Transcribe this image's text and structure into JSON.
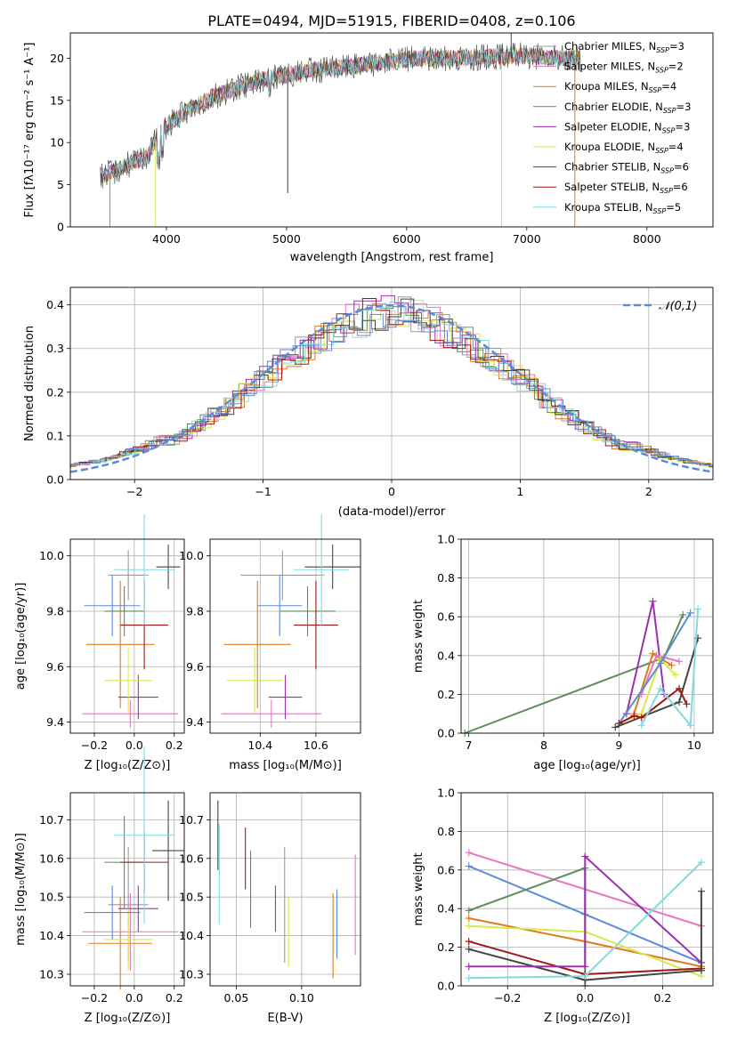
{
  "figure": {
    "title": "PLATE=0494, MJD=51915, FIBERID=0408, z=0.106"
  },
  "colors": {
    "Chabrier MILES": "#9a9a9a",
    "Salpeter MILES": "#e377c2",
    "Kroupa MILES": "#e07b1c",
    "Chabrier ELODIE": "#5c8c5c",
    "Salpeter ELODIE": "#9c2fb0",
    "Kroupa ELODIE": "#d8e84a",
    "Chabrier STELIB": "#444444",
    "Salpeter STELIB": "#a01616",
    "Kroupa STELIB": "#7fdbe0",
    "blue": "#5b8ad9",
    "gauss": "#5b8ad9"
  },
  "chart_data": [
    {
      "id": "spectrum",
      "type": "line",
      "title": "PLATE=0494, MJD=51915, FIBERID=0408, z=0.106",
      "xlabel": "wavelength [Angstrom, rest frame]",
      "ylabel": "Flux [fλ10⁻¹⁷ erg cm⁻² s⁻¹ A⁻¹]",
      "xlim": [
        3200,
        8550
      ],
      "ylim": [
        0,
        23
      ],
      "xticks": [
        "4000",
        "5000",
        "6000",
        "7000",
        "8000"
      ],
      "yticks": [
        "0",
        "5",
        "10",
        "15",
        "20"
      ],
      "grid": false,
      "legend_position": "right",
      "x_range_data": [
        3450,
        7450
      ],
      "continuum": [
        [
          3450,
          6.0
        ],
        [
          3550,
          6.5
        ],
        [
          3700,
          7.5
        ],
        [
          3850,
          8.5
        ],
        [
          3950,
          11.5
        ],
        [
          4050,
          12.5
        ],
        [
          4200,
          14.0
        ],
        [
          4400,
          15.5
        ],
        [
          4600,
          16.5
        ],
        [
          4800,
          17.5
        ],
        [
          5000,
          18.0
        ],
        [
          5200,
          18.5
        ],
        [
          5500,
          19.0
        ],
        [
          5800,
          19.5
        ],
        [
          6100,
          20.0
        ],
        [
          6400,
          20.0
        ],
        [
          6700,
          20.2
        ],
        [
          7000,
          20.3
        ],
        [
          7200,
          20.0
        ],
        [
          7450,
          20.0
        ]
      ],
      "series": [
        {
          "name": "Chabrier MILES, N_SSP=3",
          "label_main": "Chabrier MILES, N",
          "label_sub": "SSP",
          "label_tail": "=3"
        },
        {
          "name": "Salpeter MILES, N_SSP=2",
          "label_main": "Salpeter MILES, N",
          "label_sub": "SSP",
          "label_tail": "=2"
        },
        {
          "name": "Kroupa MILES, N_SSP=4",
          "label_main": "Kroupa MILES, N",
          "label_sub": "SSP",
          "label_tail": "=4"
        },
        {
          "name": "Chabrier ELODIE, N_SSP=3",
          "label_main": "Chabrier ELODIE, N",
          "label_sub": "SSP",
          "label_tail": "=3"
        },
        {
          "name": "Salpeter ELODIE, N_SSP=3",
          "label_main": "Salpeter ELODIE, N",
          "label_sub": "SSP",
          "label_tail": "=3"
        },
        {
          "name": "Kroupa ELODIE, N_SSP=4",
          "label_main": "Kroupa ELODIE, N",
          "label_sub": "SSP",
          "label_tail": "=4"
        },
        {
          "name": "Chabrier STELIB, N_SSP=6",
          "label_main": "Chabrier STELIB, N",
          "label_sub": "SSP",
          "label_tail": "=6"
        },
        {
          "name": "Salpeter STELIB, N_SSP=6",
          "label_main": "Salpeter STELIB, N",
          "label_sub": "SSP",
          "label_tail": "=6"
        },
        {
          "name": "Kroupa STELIB, N_SSP=5",
          "label_main": "Kroupa STELIB, N",
          "label_sub": "SSP",
          "label_tail": "=5"
        }
      ]
    },
    {
      "id": "residuals",
      "type": "histogram",
      "xlabel": "(data-model)/error",
      "ylabel": "Normed distribution",
      "xlim": [
        -2.5,
        2.5
      ],
      "ylim": [
        0,
        0.44
      ],
      "xticks": [
        "-2",
        "-1",
        "0",
        "1",
        "2"
      ],
      "yticks": [
        "0.0",
        "0.1",
        "0.2",
        "0.3",
        "0.4"
      ],
      "grid": true,
      "legend_position": "top-right",
      "legend_label": "𝒩(0,1)",
      "reference": "Gaussian N(0,1)"
    },
    {
      "id": "z-age",
      "type": "errorbar",
      "xlabel": "Z [log₁₀(Z/Z⊙)]",
      "ylabel": "age  [log₁₀(age/yr)]",
      "xlim": [
        -0.32,
        0.25
      ],
      "ylim": [
        9.36,
        10.06
      ],
      "xticks": [
        "-0.2",
        "0.0",
        "0.2"
      ],
      "yticks": [
        "9.4",
        "9.6",
        "9.8",
        "10.0"
      ],
      "grid": true,
      "points": [
        {
          "model": "Chabrier MILES",
          "x": -0.03,
          "xerr": 0.1,
          "y": 9.93,
          "yerr": 0.09
        },
        {
          "model": "Salpeter MILES",
          "x": -0.02,
          "xerr": 0.24,
          "y": 9.43,
          "yerr": 0.05
        },
        {
          "model": "Kroupa MILES",
          "x": -0.07,
          "xerr": 0.17,
          "y": 9.68,
          "yerr": 0.23
        },
        {
          "model": "Chabrier ELODIE",
          "x": -0.05,
          "xerr": 0.1,
          "y": 9.8,
          "yerr": 0.09
        },
        {
          "model": "Salpeter ELODIE",
          "x": 0.02,
          "xerr": 0.1,
          "y": 9.49,
          "yerr": 0.08
        },
        {
          "model": "Kroupa ELODIE",
          "x": -0.03,
          "xerr": 0.12,
          "y": 9.55,
          "yerr": 0.12
        },
        {
          "model": "Chabrier STELIB",
          "x": 0.17,
          "xerr": 0.06,
          "y": 9.96,
          "yerr": 0.08
        },
        {
          "model": "Salpeter STELIB",
          "x": 0.05,
          "xerr": 0.12,
          "y": 9.75,
          "yerr": 0.16
        },
        {
          "model": "Kroupa STELIB",
          "x": 0.05,
          "xerr": 0.15,
          "y": 9.95,
          "yerr": 0.2
        },
        {
          "model": "blue",
          "x": -0.11,
          "xerr": 0.14,
          "y": 9.82,
          "yerr": 0.11
        }
      ]
    },
    {
      "id": "mass-age",
      "type": "errorbar",
      "xlabel": "mass [log₁₀(M/M⊙)]",
      "xlim": [
        10.22,
        10.76
      ],
      "ylim": [
        9.36,
        10.06
      ],
      "xticks": [
        "10.4",
        "10.6"
      ],
      "yticks": [
        "9.4",
        "9.6",
        "9.8",
        "10.0"
      ],
      "grid": true,
      "points": [
        {
          "model": "Chabrier MILES",
          "x": 10.48,
          "xerr": 0.15,
          "y": 9.93,
          "yerr": 0.09
        },
        {
          "model": "Salpeter MILES",
          "x": 10.44,
          "xerr": 0.18,
          "y": 9.43,
          "yerr": 0.05
        },
        {
          "model": "Kroupa MILES",
          "x": 10.39,
          "xerr": 0.12,
          "y": 9.68,
          "yerr": 0.23
        },
        {
          "model": "Chabrier ELODIE",
          "x": 10.57,
          "xerr": 0.1,
          "y": 9.8,
          "yerr": 0.09
        },
        {
          "model": "Salpeter ELODIE",
          "x": 10.49,
          "xerr": 0.06,
          "y": 9.49,
          "yerr": 0.08
        },
        {
          "model": "Kroupa ELODIE",
          "x": 10.38,
          "xerr": 0.1,
          "y": 9.55,
          "yerr": 0.12
        },
        {
          "model": "Chabrier STELIB",
          "x": 10.66,
          "xerr": 0.1,
          "y": 9.96,
          "yerr": 0.08
        },
        {
          "model": "Salpeter STELIB",
          "x": 10.6,
          "xerr": 0.08,
          "y": 9.75,
          "yerr": 0.16
        },
        {
          "model": "Kroupa STELIB",
          "x": 10.62,
          "xerr": 0.1,
          "y": 9.95,
          "yerr": 0.2
        },
        {
          "model": "blue",
          "x": 10.47,
          "xerr": 0.08,
          "y": 9.82,
          "yerr": 0.11
        }
      ]
    },
    {
      "id": "age-weight",
      "type": "line",
      "xlabel": "age  [log₁₀(age/yr)]",
      "ylabel": "mass weight",
      "xlim": [
        6.9,
        10.25
      ],
      "ylim": [
        0,
        1.0
      ],
      "xticks": [
        "7",
        "8",
        "9",
        "10"
      ],
      "yticks": [
        "0.0",
        "0.2",
        "0.4",
        "0.6",
        "0.8",
        "1.0"
      ],
      "grid": true,
      "series": [
        {
          "model": "Chabrier ELODIE",
          "points": [
            [
              6.95,
              0.0
            ],
            [
              9.6,
              0.39
            ],
            [
              9.85,
              0.61
            ]
          ]
        },
        {
          "model": "Salpeter ELODIE",
          "points": [
            [
              9.1,
              0.1
            ],
            [
              9.45,
              0.68
            ],
            [
              9.6,
              0.2
            ]
          ]
        },
        {
          "model": "Kroupa MILES",
          "points": [
            [
              9.2,
              0.1
            ],
            [
              9.45,
              0.41
            ],
            [
              9.7,
              0.35
            ]
          ]
        },
        {
          "model": "Salpeter MILES",
          "points": [
            [
              9.3,
              0.2
            ],
            [
              9.5,
              0.4
            ],
            [
              9.8,
              0.37
            ]
          ]
        },
        {
          "model": "Kroupa ELODIE",
          "points": [
            [
              9.0,
              0.05
            ],
            [
              9.3,
              0.1
            ],
            [
              9.55,
              0.38
            ],
            [
              9.75,
              0.3
            ]
          ]
        },
        {
          "model": "blue",
          "points": [
            [
              9.0,
              0.05
            ],
            [
              9.55,
              0.36
            ],
            [
              9.95,
              0.62
            ]
          ]
        },
        {
          "model": "Chabrier STELIB",
          "points": [
            [
              8.95,
              0.03
            ],
            [
              9.8,
              0.16
            ],
            [
              10.05,
              0.49
            ]
          ]
        },
        {
          "model": "Salpeter STELIB",
          "points": [
            [
              9.0,
              0.05
            ],
            [
              9.2,
              0.09
            ],
            [
              9.3,
              0.08
            ],
            [
              9.8,
              0.23
            ],
            [
              9.9,
              0.15
            ]
          ]
        },
        {
          "model": "Kroupa STELIB",
          "points": [
            [
              9.3,
              0.04
            ],
            [
              9.55,
              0.23
            ],
            [
              9.95,
              0.04
            ],
            [
              10.05,
              0.64
            ]
          ]
        }
      ]
    },
    {
      "id": "z-mass",
      "type": "errorbar",
      "xlabel": "Z [log₁₀(Z/Z⊙)]",
      "ylabel": "mass [log₁₀(M/M⊙)]",
      "xlim": [
        -0.32,
        0.25
      ],
      "ylim": [
        10.27,
        10.77
      ],
      "xticks": [
        "-0.2",
        "0.0",
        "0.2"
      ],
      "yticks": [
        "10.3",
        "10.4",
        "10.5",
        "10.6",
        "10.7"
      ],
      "grid": true,
      "points": [
        {
          "model": "Chabrier MILES",
          "x": -0.03,
          "xerr": 0.1,
          "y": 10.48,
          "yerr": 0.15
        },
        {
          "model": "Salpeter MILES",
          "x": -0.02,
          "xerr": 0.24,
          "y": 10.41,
          "yerr": 0.1
        },
        {
          "model": "Kroupa MILES",
          "x": -0.07,
          "xerr": 0.16,
          "y": 10.38,
          "yerr": 0.12
        },
        {
          "model": "Chabrier ELODIE",
          "x": -0.05,
          "xerr": 0.1,
          "y": 10.59,
          "yerr": 0.12
        },
        {
          "model": "Salpeter ELODIE",
          "x": 0.02,
          "xerr": 0.1,
          "y": 10.47,
          "yerr": 0.06
        },
        {
          "model": "Kroupa ELODIE",
          "x": -0.03,
          "xerr": 0.12,
          "y": 10.39,
          "yerr": 0.08
        },
        {
          "model": "Chabrier STELIB",
          "x": 0.17,
          "xerr": 0.08,
          "y": 10.62,
          "yerr": 0.13
        },
        {
          "model": "Salpeter STELIB",
          "x": 0.05,
          "xerr": 0.12,
          "y": 10.59,
          "yerr": 0.08
        },
        {
          "model": "Kroupa STELIB",
          "x": 0.05,
          "xerr": 0.15,
          "y": 10.66,
          "yerr": 0.23
        },
        {
          "model": "blue",
          "x": -0.11,
          "xerr": 0.14,
          "y": 10.46,
          "yerr": 0.07
        }
      ]
    },
    {
      "id": "ebv-mass",
      "type": "errorbar",
      "xlabel": "E(B-V)",
      "xlim": [
        0.03,
        0.145
      ],
      "ylim": [
        10.27,
        10.77
      ],
      "xticks": [
        "0.05",
        "0.10"
      ],
      "yticks": [
        "10.3",
        "10.4",
        "10.5",
        "10.6",
        "10.7"
      ],
      "grid": true,
      "points": [
        {
          "model": "Chabrier MILES",
          "x": 0.087,
          "y": 10.48,
          "yerr": 0.15
        },
        {
          "model": "Salpeter MILES",
          "x": 0.141,
          "y": 10.48,
          "yerr": 0.13
        },
        {
          "model": "Kroupa MILES",
          "x": 0.124,
          "y": 10.4,
          "yerr": 0.11
        },
        {
          "model": "Chabrier ELODIE",
          "x": 0.061,
          "y": 10.52,
          "yerr": 0.1
        },
        {
          "model": "Salpeter ELODIE",
          "x": 0.08,
          "y": 10.47,
          "yerr": 0.06
        },
        {
          "model": "Kroupa ELODIE",
          "x": 0.09,
          "y": 10.41,
          "yerr": 0.09
        },
        {
          "model": "Chabrier STELIB",
          "x": 0.036,
          "y": 10.66,
          "yerr": 0.09
        },
        {
          "model": "Salpeter STELIB",
          "x": 0.057,
          "y": 10.6,
          "yerr": 0.08
        },
        {
          "model": "Kroupa STELIB",
          "x": 0.037,
          "y": 10.56,
          "yerr": 0.13
        },
        {
          "model": "blue",
          "x": 0.127,
          "y": 10.43,
          "yerr": 0.09
        }
      ]
    },
    {
      "id": "z-weight",
      "type": "line",
      "xlabel": "Z [log₁₀(Z/Z⊙)]",
      "ylabel": "mass weight",
      "xlim": [
        -0.32,
        0.33
      ],
      "ylim": [
        0,
        1.0
      ],
      "xticks": [
        "-0.2",
        "0.0",
        "0.2"
      ],
      "yticks": [
        "0.0",
        "0.2",
        "0.4",
        "0.6",
        "0.8",
        "1.0"
      ],
      "grid": true,
      "series": [
        {
          "model": "Salpeter MILES",
          "points": [
            [
              -0.3,
              0.69
            ],
            [
              0.3,
              0.31
            ]
          ]
        },
        {
          "model": "blue",
          "points": [
            [
              -0.3,
              0.62
            ],
            [
              0.0,
              0.37
            ],
            [
              0.3,
              0.12
            ]
          ]
        },
        {
          "model": "Chabrier ELODIE",
          "points": [
            [
              -0.3,
              0.39
            ],
            [
              0.0,
              0.61
            ],
            [
              0.0,
              0.0
            ]
          ]
        },
        {
          "model": "Kroupa MILES",
          "points": [
            [
              -0.3,
              0.35
            ],
            [
              0.0,
              0.23
            ],
            [
              0.3,
              0.1
            ]
          ]
        },
        {
          "model": "Kroupa ELODIE",
          "points": [
            [
              -0.3,
              0.31
            ],
            [
              0.0,
              0.28
            ],
            [
              0.3,
              0.05
            ]
          ]
        },
        {
          "model": "Salpeter STELIB",
          "points": [
            [
              -0.3,
              0.23
            ],
            [
              0.0,
              0.06
            ],
            [
              0.3,
              0.09
            ]
          ]
        },
        {
          "model": "Chabrier STELIB",
          "points": [
            [
              -0.3,
              0.19
            ],
            [
              0.0,
              0.03
            ],
            [
              0.3,
              0.08
            ]
          ]
        },
        {
          "model": "Salpeter ELODIE",
          "points": [
            [
              -0.3,
              0.1
            ],
            [
              0.0,
              0.1
            ],
            [
              0.0,
              0.67
            ],
            [
              0.3,
              0.12
            ]
          ]
        },
        {
          "model": "Kroupa STELIB",
          "points": [
            [
              -0.3,
              0.04
            ],
            [
              0.0,
              0.05
            ],
            [
              0.3,
              0.64
            ]
          ]
        },
        {
          "model": "Chabrier STELIB",
          "points": [
            [
              0.3,
              0.08
            ],
            [
              0.3,
              0.49
            ]
          ]
        }
      ]
    }
  ]
}
